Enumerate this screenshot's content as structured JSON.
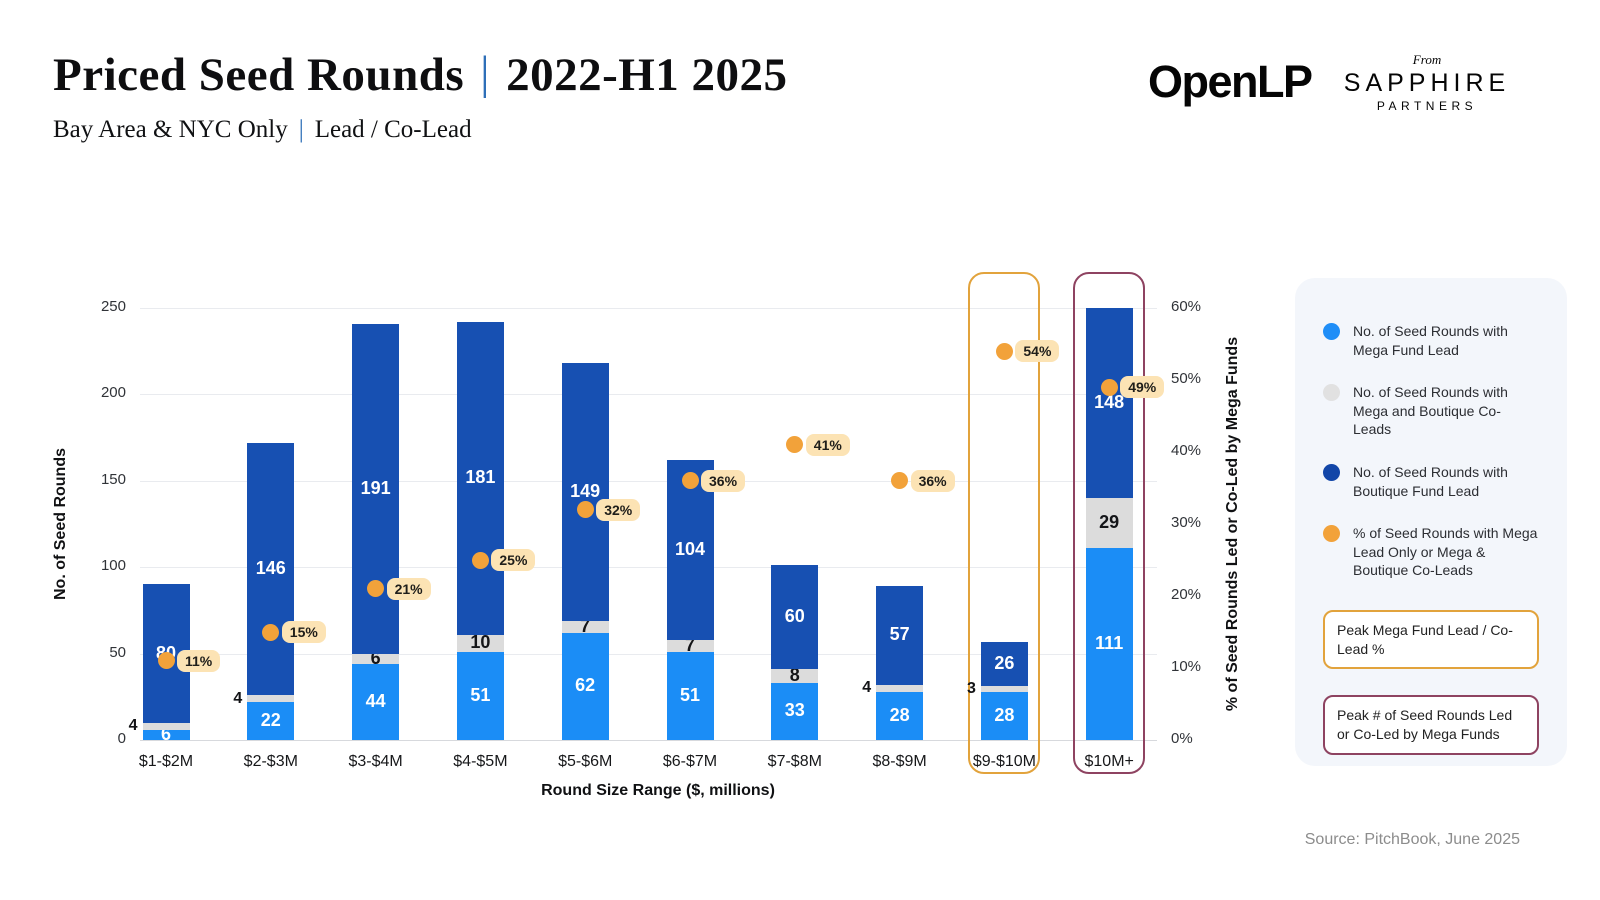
{
  "header": {
    "title_left": "Priced Seed Rounds",
    "title_sep": "|",
    "title_right": "2022-H1 2025",
    "subtitle_left": "Bay Area & NYC Only",
    "subtitle_sep": "|",
    "subtitle_right": "Lead / Co-Lead"
  },
  "logo": {
    "openlp": "OpenLP",
    "from": "From",
    "sapphire": "SAPPHIRE",
    "partners": "PARTNERS"
  },
  "legend": {
    "items": [
      {
        "label": "No. of Seed Rounds with Mega Fund Lead",
        "color": "#1f8ef7"
      },
      {
        "label": "No. of Seed Rounds with Mega and Boutique Co-Leads",
        "color": "#e1e1e1"
      },
      {
        "label": "No. of Seed Rounds with Boutique Fund Lead",
        "color": "#1246a8"
      },
      {
        "label": "% of Seed Rounds with Mega Lead Only or Mega & Boutique Co-Leads",
        "color": "#f2a23a"
      }
    ],
    "callouts": [
      {
        "label": "Peak Mega Fund Lead / Co-Lead %",
        "border_color": "#e2a33c"
      },
      {
        "label": "Peak # of Seed Rounds Led or Co-Led by Mega Funds",
        "border_color": "#8e4361"
      }
    ]
  },
  "chart_data": {
    "type": "bar",
    "stacked": true,
    "title": "Priced Seed Rounds | 2022-H1 2025",
    "subtitle": "Bay Area & NYC Only | Lead / Co-Lead",
    "categories": [
      "$1-$2M",
      "$2-$3M",
      "$3-$4M",
      "$4-$5M",
      "$5-$6M",
      "$6-$7M",
      "$7-$8M",
      "$8-$9M",
      "$9-$10M",
      "$10M+"
    ],
    "series": [
      {
        "name": "No. of Seed Rounds with Mega Fund Lead",
        "color": "#1b8df6",
        "values": [
          6,
          22,
          44,
          51,
          62,
          51,
          33,
          28,
          28,
          111
        ]
      },
      {
        "name": "No. of Seed Rounds with Mega and Boutique Co-Leads",
        "color": "#dcdcdc",
        "values": [
          4,
          4,
          6,
          10,
          7,
          7,
          8,
          4,
          3,
          29
        ]
      },
      {
        "name": "No. of Seed Rounds with Boutique Fund Lead",
        "color": "#1750b2",
        "values": [
          80,
          146,
          191,
          181,
          149,
          104,
          60,
          57,
          26,
          148
        ]
      }
    ],
    "pct_series": {
      "name": "% of Seed Rounds with Mega Lead Only or Mega & Boutique Co-Leads",
      "color": "#f2a23a",
      "values": [
        11,
        15,
        21,
        25,
        32,
        36,
        41,
        36,
        54,
        49
      ]
    },
    "xlabel": "Round Size Range ($, millions)",
    "ylabel_left": "No. of Seed Rounds",
    "ylabel_right": "% of Seed Rounds Led or Co-Led by Mega Funds",
    "ylim_left": [
      0,
      250
    ],
    "yticks_left": [
      0,
      50,
      100,
      150,
      200,
      250
    ],
    "ylim_right_pct": [
      0,
      60
    ],
    "yticks_right_pct": [
      0,
      10,
      20,
      30,
      40,
      50,
      60
    ],
    "grid": "horizontal",
    "legend_position": "right",
    "highlights": [
      {
        "category": "$9-$10M",
        "label": "Peak Mega Fund Lead / Co-Lead %",
        "color": "#e2a33c"
      },
      {
        "category": "$10M+",
        "label": "Peak # of Seed Rounds Led or Co-Led by Mega Funds",
        "color": "#8e4361"
      }
    ]
  },
  "source": "Source: PitchBook, June 2025",
  "colors": {
    "mega_fund": "#1b8df6",
    "co_leads": "#dcdcdc",
    "boutique_fund": "#1750b2",
    "pct_dot": "#f2a23a",
    "pill_bg": "#fce3b4",
    "gold_highlight": "#e2a33c",
    "maroon_highlight": "#8e4361",
    "panel_bg": "#f3f6fb",
    "title_separator": "#2e6fb8"
  }
}
